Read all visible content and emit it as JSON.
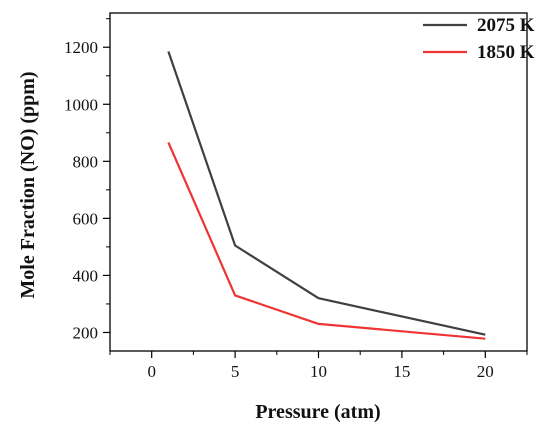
{
  "chart_data": {
    "type": "line",
    "xlabel": "Pressure (atm)",
    "ylabel": "Mole Fraction (NO) (ppm)",
    "xlim": [
      -2.5,
      22.5
    ],
    "ylim": [
      135,
      1320
    ],
    "xticks": [
      0,
      5,
      10,
      15,
      20
    ],
    "yticks": [
      200,
      400,
      600,
      800,
      1000,
      1200
    ],
    "x_minor_ticks": [
      -2.5,
      2.5,
      7.5,
      12.5,
      17.5,
      22.5
    ],
    "y_minor_ticks": [
      300,
      500,
      700,
      900,
      1100,
      1300
    ],
    "legend_position": "top-right",
    "grid": false,
    "series": [
      {
        "name": "2075 K",
        "color": "#404040",
        "x": [
          1,
          5,
          10,
          20
        ],
        "y": [
          1185,
          505,
          320,
          192
        ]
      },
      {
        "name": "1850 K",
        "color": "#ee3535",
        "x": [
          1,
          5,
          10,
          20
        ],
        "y": [
          866,
          330,
          230,
          178
        ]
      }
    ]
  }
}
